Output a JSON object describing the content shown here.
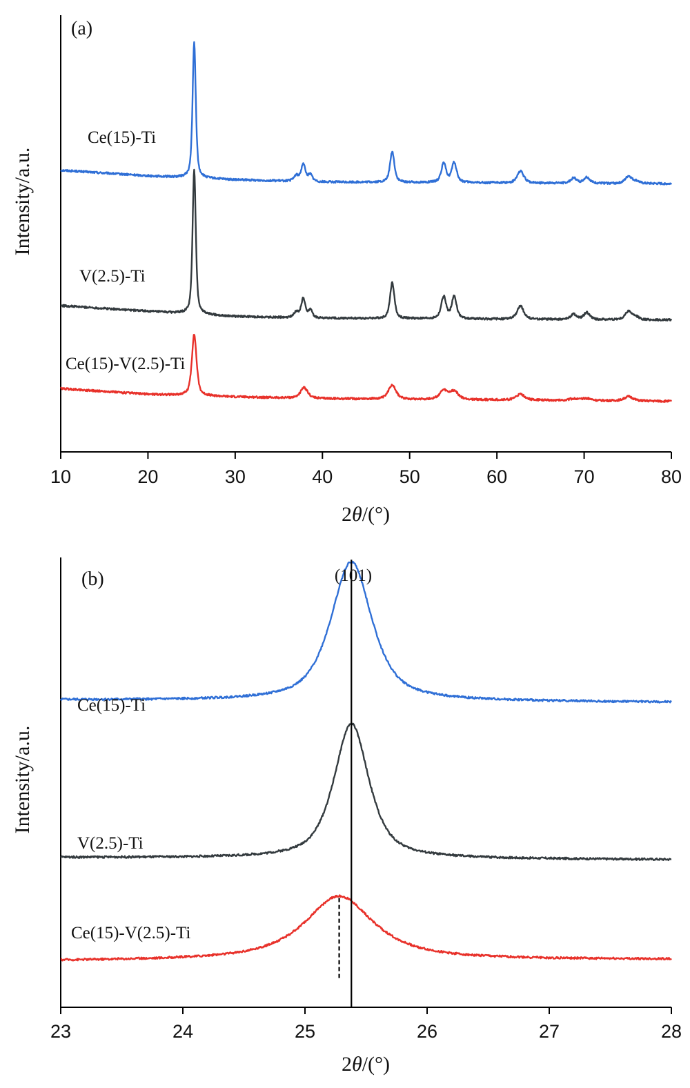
{
  "chart_data": [
    {
      "type": "line",
      "panel_label": "(a)",
      "xlabel": "2θ/(°)",
      "xlabel_parts": {
        "symbol_prefix": "2",
        "symbol": "θ",
        "unit": "/(°)"
      },
      "ylabel": "Intensity/a.u.",
      "xlim": [
        10,
        80
      ],
      "xticks": [
        10,
        20,
        30,
        40,
        50,
        60,
        70,
        80
      ],
      "y_units": "relative intensity (stacked offsets)",
      "ylim": [
        0,
        100
      ],
      "grid": false,
      "legend": "inline labels left of each trace",
      "series": [
        {
          "name": "Ce(15)-Ti",
          "color": "#2f6fd6",
          "baseline": [
            [
              10,
              64.5
            ],
            [
              20,
              63.2
            ],
            [
              30,
              62.3
            ],
            [
              40,
              61.8
            ],
            [
              80,
              61.4
            ]
          ],
          "peaks": [
            [
              25.3,
              31.0,
              0.22
            ],
            [
              37.0,
              1.3,
              0.3
            ],
            [
              37.8,
              4.0,
              0.28
            ],
            [
              38.6,
              1.6,
              0.3
            ],
            [
              48.0,
              7.0,
              0.3
            ],
            [
              53.9,
              4.3,
              0.34
            ],
            [
              55.1,
              4.5,
              0.34
            ],
            [
              62.7,
              2.7,
              0.45
            ],
            [
              68.8,
              1.2,
              0.4
            ],
            [
              70.3,
              1.4,
              0.4
            ],
            [
              75.1,
              1.7,
              0.45
            ],
            [
              76.0,
              0.5,
              0.4
            ]
          ]
        },
        {
          "name": "V(2.5)-Ti",
          "color": "#333a3e",
          "baseline": [
            [
              10,
              33.5
            ],
            [
              20,
              32.2
            ],
            [
              30,
              31.0
            ],
            [
              40,
              30.6
            ],
            [
              80,
              30.2
            ]
          ],
          "peaks": [
            [
              25.3,
              33.0,
              0.22
            ],
            [
              37.0,
              1.3,
              0.3
            ],
            [
              37.8,
              4.4,
              0.28
            ],
            [
              38.6,
              1.7,
              0.3
            ],
            [
              48.0,
              8.2,
              0.3
            ],
            [
              53.9,
              5.0,
              0.34
            ],
            [
              55.1,
              5.0,
              0.34
            ],
            [
              62.7,
              3.0,
              0.45
            ],
            [
              68.8,
              1.2,
              0.4
            ],
            [
              70.3,
              1.6,
              0.4
            ],
            [
              75.1,
              2.0,
              0.45
            ],
            [
              76.0,
              0.6,
              0.4
            ]
          ]
        },
        {
          "name": "Ce(15)-V(2.5)-Ti",
          "color": "#e8312a",
          "baseline": [
            [
              10,
              14.5
            ],
            [
              20,
              13.2
            ],
            [
              30,
              12.6
            ],
            [
              40,
              12.2
            ],
            [
              80,
              11.6
            ]
          ],
          "peaks": [
            [
              25.3,
              14.0,
              0.32
            ],
            [
              37.9,
              2.4,
              0.5
            ],
            [
              48.0,
              3.3,
              0.5
            ],
            [
              53.9,
              2.0,
              0.55
            ],
            [
              55.1,
              1.9,
              0.55
            ],
            [
              62.7,
              1.3,
              0.6
            ],
            [
              68.8,
              0.4,
              0.6
            ],
            [
              70.3,
              0.5,
              0.6
            ],
            [
              75.1,
              1.0,
              0.6
            ]
          ]
        }
      ]
    },
    {
      "type": "line",
      "panel_label": "(b)",
      "xlabel": "2θ/(°)",
      "xlabel_parts": {
        "symbol_prefix": "2",
        "symbol": "θ",
        "unit": "/(°)"
      },
      "ylabel": "Intensity/a.u.",
      "xlim": [
        23,
        28
      ],
      "xticks": [
        23,
        24,
        25,
        26,
        27,
        28
      ],
      "y_units": "relative intensity (stacked offsets)",
      "ylim": [
        0,
        100
      ],
      "grid": false,
      "legend": "inline labels left of each trace",
      "annotation": {
        "text": "(101)"
      },
      "reference_lines": [
        {
          "x": 25.38,
          "style": "solid"
        },
        {
          "x": 25.28,
          "style": "dashed"
        }
      ],
      "series": [
        {
          "name": "Ce(15)-Ti",
          "color": "#2f6fd6",
          "baseline": [
            [
              23,
              68.3
            ],
            [
              28,
              67.8
            ]
          ],
          "peaks": [
            [
              25.38,
              31.0,
              0.2,
              0.7
            ]
          ]
        },
        {
          "name": "V(2.5)-Ti",
          "color": "#333a3e",
          "baseline": [
            [
              23,
              33.3
            ],
            [
              28,
              32.8
            ]
          ],
          "peaks": [
            [
              25.38,
              30.0,
              0.17,
              0.7
            ]
          ]
        },
        {
          "name": "Ce(15)-V(2.5)-Ti",
          "color": "#e8312a",
          "baseline": [
            [
              23,
              10.3
            ],
            [
              28,
              10.6
            ]
          ],
          "peaks": [
            [
              25.28,
              14.3,
              0.34,
              0.9
            ]
          ]
        }
      ]
    }
  ]
}
